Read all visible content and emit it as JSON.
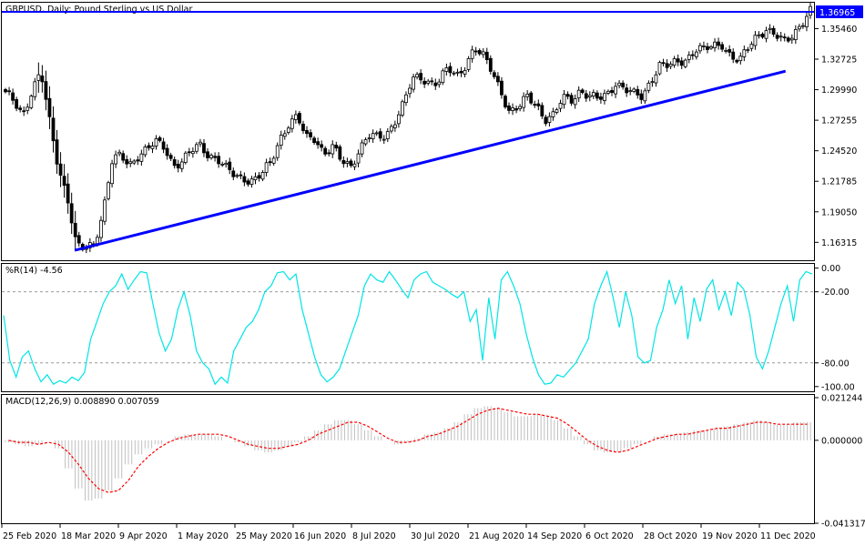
{
  "window": {
    "title": "GBPUSD, Daily:  Pound Sterling vs US Dollar"
  },
  "panels": {
    "williams": {
      "title": "%R(14) -4.56"
    },
    "macd": {
      "title": "MACD(12,26,9) 0.008890 0.007059"
    }
  },
  "chart_data": [
    {
      "type": "candlestick",
      "title": "GBPUSD, Daily:  Pound Sterling vs US Dollar",
      "symbol": "GBPUSD",
      "timeframe": "Daily",
      "y_ticks": [
        "1.35460",
        "1.32725",
        "1.29990",
        "1.27255",
        "1.24520",
        "1.21785",
        "1.19050",
        "1.16315"
      ],
      "ylim": [
        1.1471,
        1.3778
      ],
      "current_price": "1.36965",
      "current_price_color": "#0000ff",
      "x_ticks": [
        "25 Feb 2020",
        "18 Mar 2020",
        "9 Apr 2020",
        "1 May 2020",
        "25 May 2020",
        "16 Jun 2020",
        "8 Jul 2020",
        "30 Jul 2020",
        "21 Aug 2020",
        "14 Sep 2020",
        "6 Oct 2020",
        "28 Oct 2020",
        "19 Nov 2020",
        "11 Dec 2020"
      ],
      "colors": {
        "up_body": "#ffffff",
        "down_body": "#000000",
        "wick": "#000000",
        "trendline": "#0000ff"
      },
      "close_path": [
        {
          "date": "25 Feb 2020",
          "close": 1.296
        },
        {
          "date": "27 Feb 2020",
          "close": 1.288
        },
        {
          "date": "2 Mar 2020",
          "close": 1.278
        },
        {
          "date": "5 Mar 2020",
          "close": 1.3
        },
        {
          "date": "9 Mar 2020",
          "close": 1.315
        },
        {
          "date": "11 Mar 2020",
          "close": 1.27
        },
        {
          "date": "13 Mar 2020",
          "close": 1.23
        },
        {
          "date": "16 Mar 2020",
          "close": 1.205
        },
        {
          "date": "18 Mar 2020",
          "close": 1.16
        },
        {
          "date": "20 Mar 2020",
          "close": 1.156
        },
        {
          "date": "23 Mar 2020",
          "close": 1.162
        },
        {
          "date": "25 Mar 2020",
          "close": 1.19
        },
        {
          "date": "27 Mar 2020",
          "close": 1.235
        },
        {
          "date": "30 Mar 2020",
          "close": 1.24
        },
        {
          "date": "2 Apr 2020",
          "close": 1.232
        },
        {
          "date": "6 Apr 2020",
          "close": 1.242
        },
        {
          "date": "9 Apr 2020",
          "close": 1.247
        },
        {
          "date": "13 Apr 2020",
          "close": 1.252
        },
        {
          "date": "16 Apr 2020",
          "close": 1.248
        },
        {
          "date": "20 Apr 2020",
          "close": 1.233
        },
        {
          "date": "24 Apr 2020",
          "close": 1.236
        },
        {
          "date": "28 Apr 2020",
          "close": 1.244
        },
        {
          "date": "1 May 2020",
          "close": 1.25
        },
        {
          "date": "5 May 2020",
          "close": 1.242
        },
        {
          "date": "8 May 2020",
          "close": 1.238
        },
        {
          "date": "12 May 2020",
          "close": 1.228
        },
        {
          "date": "15 May 2020",
          "close": 1.222
        },
        {
          "date": "19 May 2020",
          "close": 1.221
        },
        {
          "date": "22 May 2020",
          "close": 1.219
        },
        {
          "date": "25 May 2020",
          "close": 1.224
        },
        {
          "date": "29 May 2020",
          "close": 1.234
        },
        {
          "date": "3 Jun 2020",
          "close": 1.256
        },
        {
          "date": "8 Jun 2020",
          "close": 1.27
        },
        {
          "date": "10 Jun 2020",
          "close": 1.275
        },
        {
          "date": "12 Jun 2020",
          "close": 1.256
        },
        {
          "date": "16 Jun 2020",
          "close": 1.257
        },
        {
          "date": "19 Jun 2020",
          "close": 1.244
        },
        {
          "date": "22 Jun 2020",
          "close": 1.248
        },
        {
          "date": "26 Jun 2020",
          "close": 1.235
        },
        {
          "date": "29 Jun 2020",
          "close": 1.231
        },
        {
          "date": "2 Jul 2020",
          "close": 1.247
        },
        {
          "date": "8 Jul 2020",
          "close": 1.259
        },
        {
          "date": "14 Jul 2020",
          "close": 1.256
        },
        {
          "date": "17 Jul 2020",
          "close": 1.258
        },
        {
          "date": "22 Jul 2020",
          "close": 1.273
        },
        {
          "date": "27 Jul 2020",
          "close": 1.288
        },
        {
          "date": "30 Jul 2020",
          "close": 1.308
        },
        {
          "date": "5 Aug 2020",
          "close": 1.31
        },
        {
          "date": "10 Aug 2020",
          "close": 1.307
        },
        {
          "date": "13 Aug 2020",
          "close": 1.308
        },
        {
          "date": "18 Aug 2020",
          "close": 1.318
        },
        {
          "date": "21 Aug 2020",
          "close": 1.311
        },
        {
          "date": "26 Aug 2020",
          "close": 1.323
        },
        {
          "date": "1 Sep 2020",
          "close": 1.338
        },
        {
          "date": "3 Sep 2020",
          "close": 1.329
        },
        {
          "date": "7 Sep 2020",
          "close": 1.316
        },
        {
          "date": "9 Sep 2020",
          "close": 1.3
        },
        {
          "date": "11 Sep 2020",
          "close": 1.28
        },
        {
          "date": "14 Sep 2020",
          "close": 1.283
        },
        {
          "date": "17 Sep 2020",
          "close": 1.293
        },
        {
          "date": "21 Sep 2020",
          "close": 1.288
        },
        {
          "date": "23 Sep 2020",
          "close": 1.274
        },
        {
          "date": "25 Sep 2020",
          "close": 1.276
        },
        {
          "date": "30 Sep 2020",
          "close": 1.292
        },
        {
          "date": "6 Oct 2020",
          "close": 1.292
        },
        {
          "date": "9 Oct 2020",
          "close": 1.3
        },
        {
          "date": "13 Oct 2020",
          "close": 1.293
        },
        {
          "date": "16 Oct 2020",
          "close": 1.291
        },
        {
          "date": "20 Oct 2020",
          "close": 1.296
        },
        {
          "date": "22 Oct 2020",
          "close": 1.307
        },
        {
          "date": "26 Oct 2020",
          "close": 1.3
        },
        {
          "date": "28 Oct 2020",
          "close": 1.295
        },
        {
          "date": "2 Nov 2020",
          "close": 1.294
        },
        {
          "date": "5 Nov 2020",
          "close": 1.31
        },
        {
          "date": "10 Nov 2020",
          "close": 1.322
        },
        {
          "date": "13 Nov 2020",
          "close": 1.32
        },
        {
          "date": "17 Nov 2020",
          "close": 1.325
        },
        {
          "date": "19 Nov 2020",
          "close": 1.328
        },
        {
          "date": "24 Nov 2020",
          "close": 1.336
        },
        {
          "date": "27 Nov 2020",
          "close": 1.335
        },
        {
          "date": "1 Dec 2020",
          "close": 1.339
        },
        {
          "date": "3 Dec 2020",
          "close": 1.342
        },
        {
          "date": "7 Dec 2020",
          "close": 1.33
        },
        {
          "date": "9 Dec 2020",
          "close": 1.324
        },
        {
          "date": "11 Dec 2020",
          "close": 1.338
        },
        {
          "date": "14 Dec 2020",
          "close": 1.35
        },
        {
          "date": "16 Dec 2020",
          "close": 1.354
        },
        {
          "date": "18 Dec 2020",
          "close": 1.348
        },
        {
          "date": "21 Dec 2020",
          "close": 1.342
        },
        {
          "date": "23 Dec 2020",
          "close": 1.35
        },
        {
          "date": "28 Dec 2020",
          "close": 1.36
        },
        {
          "date": "30 Dec 2020",
          "close": 1.3696
        }
      ],
      "trendline": [
        {
          "date": "18 Mar 2020",
          "value": 1.156
        },
        {
          "date": "21 Dec 2020",
          "value": 1.3165
        }
      ],
      "resistance": {
        "value": 1.36965,
        "color": "#0000ff"
      }
    },
    {
      "type": "line",
      "title": "%R(14) -4.56",
      "y_ticks": [
        "0.00",
        "-20.00",
        "-80.00",
        "-100.00"
      ],
      "levels": [
        -20,
        -80
      ],
      "ylim": [
        -104,
        2
      ],
      "color": "#00e5e5",
      "values": [
        -40,
        -78,
        -92,
        -75,
        -70,
        -85,
        -96,
        -90,
        -98,
        -95,
        -97,
        -92,
        -95,
        -88,
        -60,
        -45,
        -30,
        -20,
        -15,
        -5,
        -18,
        -10,
        -3,
        -4,
        -30,
        -55,
        -70,
        -60,
        -35,
        -20,
        -40,
        -70,
        -80,
        -85,
        -98,
        -92,
        -97,
        -70,
        -60,
        -50,
        -45,
        -35,
        -20,
        -15,
        -4,
        -3,
        -10,
        -5,
        -35,
        -55,
        -75,
        -90,
        -96,
        -92,
        -85,
        -70,
        -55,
        -40,
        -15,
        -5,
        -10,
        -12,
        -3,
        -10,
        -18,
        -25,
        -10,
        -5,
        -3,
        -12,
        -15,
        -18,
        -22,
        -25,
        -20,
        -45,
        -35,
        -78,
        -25,
        -60,
        -10,
        -3,
        -15,
        -30,
        -55,
        -75,
        -90,
        -98,
        -97,
        -90,
        -92,
        -86,
        -80,
        -70,
        -60,
        -30,
        -15,
        -3,
        -25,
        -50,
        -20,
        -40,
        -75,
        -80,
        -78,
        -50,
        -35,
        -10,
        -30,
        -15,
        -60,
        -25,
        -45,
        -18,
        -10,
        -35,
        -20,
        -40,
        -12,
        -18,
        -40,
        -75,
        -85,
        -70,
        -50,
        -30,
        -15,
        -45,
        -10,
        -3,
        -5
      ]
    },
    {
      "type": "bar+line",
      "title": "MACD(12,26,9) 0.008890 0.007059",
      "y_ticks": [
        "0.021244",
        "0.000000",
        "-0.041317"
      ],
      "ylim": [
        -0.041317,
        0.021244
      ],
      "histogram_color": "#c0c0c0",
      "signal_color": "#ff0000",
      "macd_histogram": [
        -0.001,
        -0.002,
        -0.003,
        -0.002,
        0.0,
        -0.004,
        -0.014,
        -0.024,
        -0.03,
        -0.029,
        -0.025,
        -0.019,
        -0.012,
        -0.007,
        -0.004,
        -0.002,
        0.0,
        0.002,
        0.003,
        0.003,
        0.003,
        0.002,
        0.0,
        -0.001,
        -0.003,
        -0.005,
        -0.006,
        -0.005,
        -0.003,
        -0.001,
        0.002,
        0.005,
        0.008,
        0.01,
        0.01,
        0.008,
        0.005,
        0.002,
        0.0,
        -0.002,
        -0.001,
        0.001,
        0.003,
        0.004,
        0.006,
        0.009,
        0.013,
        0.016,
        0.017,
        0.016,
        0.014,
        0.012,
        0.012,
        0.013,
        0.012,
        0.01,
        0.006,
        0.002,
        -0.002,
        -0.005,
        -0.006,
        -0.006,
        -0.004,
        -0.002,
        0.0,
        0.002,
        0.003,
        0.003,
        0.004,
        0.005,
        0.005,
        0.006,
        0.007,
        0.008,
        0.009,
        0.01,
        0.009,
        0.008,
        0.008,
        0.009,
        0.009
      ],
      "signal": [
        0.0,
        -0.001,
        -0.001,
        -0.002,
        -0.001,
        -0.002,
        -0.006,
        -0.012,
        -0.019,
        -0.024,
        -0.026,
        -0.025,
        -0.02,
        -0.013,
        -0.008,
        -0.004,
        -0.001,
        0.001,
        0.002,
        0.003,
        0.003,
        0.003,
        0.002,
        0.0,
        -0.002,
        -0.003,
        -0.004,
        -0.004,
        -0.003,
        -0.002,
        0.0,
        0.003,
        0.005,
        0.007,
        0.009,
        0.009,
        0.007,
        0.004,
        0.001,
        -0.001,
        -0.001,
        0.0,
        0.002,
        0.003,
        0.005,
        0.007,
        0.01,
        0.013,
        0.015,
        0.016,
        0.015,
        0.014,
        0.013,
        0.013,
        0.012,
        0.011,
        0.008,
        0.004,
        0.0,
        -0.003,
        -0.005,
        -0.006,
        -0.005,
        -0.003,
        -0.001,
        0.001,
        0.002,
        0.003,
        0.003,
        0.004,
        0.005,
        0.006,
        0.006,
        0.007,
        0.008,
        0.009,
        0.009,
        0.008,
        0.008,
        0.008,
        0.008
      ]
    }
  ]
}
